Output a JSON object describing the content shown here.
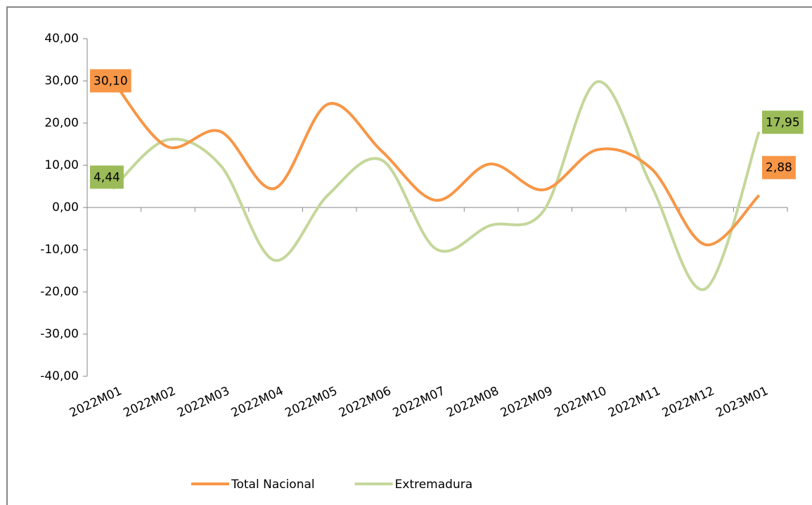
{
  "chart_data": {
    "type": "line",
    "categories": [
      "2022M01",
      "2022M02",
      "2022M03",
      "2022M04",
      "2022M05",
      "2022M06",
      "2022M07",
      "2022M08",
      "2022M09",
      "2022M10",
      "2022M11",
      "2022M12",
      "2023M01"
    ],
    "series": [
      {
        "name": "Total Nacional",
        "color": "#f79646",
        "label_color": "#f79646",
        "values": [
          30.1,
          14.5,
          18,
          4.5,
          24.5,
          13.3,
          1.7,
          10.3,
          4.2,
          13.7,
          9.2,
          -8.8,
          2.88
        ],
        "value_labels": [
          "30,10",
          null,
          null,
          null,
          null,
          null,
          null,
          null,
          null,
          null,
          null,
          null,
          "2,88"
        ]
      },
      {
        "name": "Extremadura",
        "color": "#c4d79b",
        "label_color": "#9bbb59",
        "values": [
          4.44,
          16,
          10,
          -12.5,
          3,
          11.2,
          -9.8,
          -4.3,
          -0.8,
          29.8,
          5.2,
          -19.3,
          17.95
        ],
        "value_labels": [
          "4,44",
          null,
          null,
          null,
          null,
          null,
          null,
          null,
          null,
          null,
          null,
          null,
          "17,95"
        ]
      }
    ],
    "ylim": [
      -40,
      40
    ],
    "yticks": [
      {
        "value": -40,
        "label": "-40,00"
      },
      {
        "value": -30,
        "label": "-30,00"
      },
      {
        "value": -20,
        "label": "-20,00"
      },
      {
        "value": -10,
        "label": "-10,00"
      },
      {
        "value": 0,
        "label": "0,00"
      },
      {
        "value": 10,
        "label": "10,00"
      },
      {
        "value": 20,
        "label": "20,00"
      },
      {
        "value": 30,
        "label": "30,00"
      },
      {
        "value": 40,
        "label": "40,00"
      }
    ],
    "smooth": true,
    "legend": "bottom"
  }
}
